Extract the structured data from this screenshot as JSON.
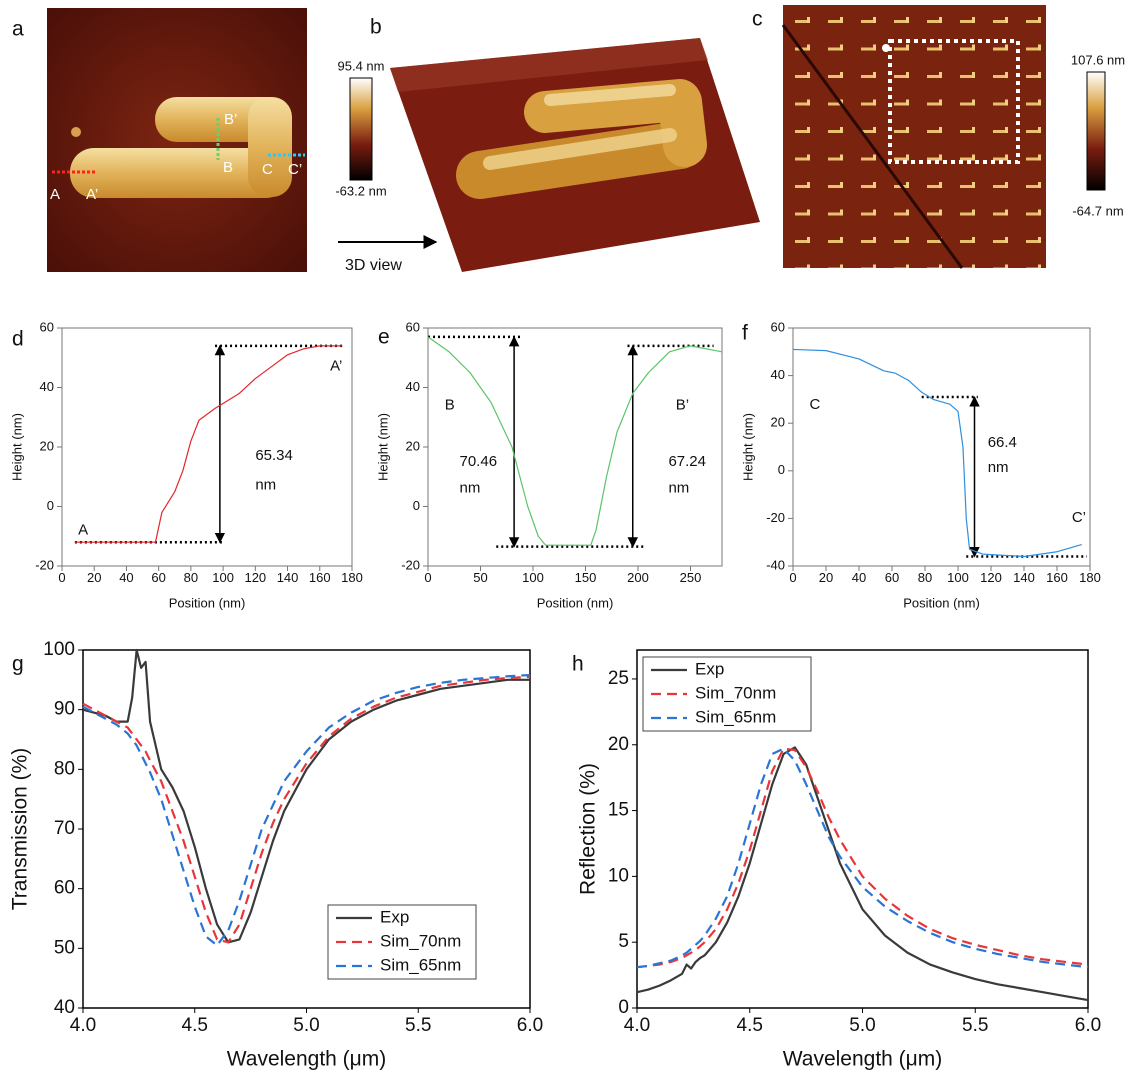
{
  "panels": [
    "a",
    "b",
    "c",
    "d",
    "e",
    "f",
    "g",
    "h"
  ],
  "images": {
    "a": {
      "annotations": [
        "A",
        "A’",
        "B",
        "B’",
        "C",
        "C’"
      ]
    },
    "b": {
      "colorbar": [
        "95.4 nm",
        "-63.2 nm"
      ],
      "caption": "3D view"
    },
    "c": {
      "colorbar": [
        "107.6 nm",
        "-64.7 nm"
      ]
    }
  },
  "chart_data": [
    {
      "type": "line",
      "x_label": "Position (nm)",
      "y_label": "Height (nm)",
      "xlim": [
        0,
        180
      ],
      "xticks": [
        0,
        20,
        40,
        60,
        80,
        100,
        120,
        140,
        160,
        180
      ],
      "ylim": [
        -20,
        60
      ],
      "yticks": [
        -20,
        0,
        20,
        40,
        60
      ],
      "x": [
        8,
        40,
        58,
        62,
        70,
        75,
        80,
        85,
        95,
        110,
        120,
        130,
        140,
        150,
        160,
        174
      ],
      "series": [
        {
          "color": "#e3262b",
          "values": [
            -12,
            -12,
            -12,
            -2,
            5,
            12,
            22,
            29,
            33,
            38,
            43,
            47,
            51,
            53,
            54,
            54
          ]
        }
      ],
      "ref_lines": [
        {
          "y": 54,
          "x": [
            95,
            175
          ]
        },
        {
          "y": -12,
          "x": [
            8,
            100
          ]
        }
      ],
      "arrows": [
        {
          "x": 98,
          "y": [
            -12,
            54
          ]
        }
      ],
      "annotations": [
        "A",
        "A’",
        "65.34",
        "nm"
      ]
    },
    {
      "type": "line",
      "x_label": "Position (nm)",
      "y_label": "Height (nm)",
      "xlim": [
        0,
        280
      ],
      "xticks": [
        0,
        50,
        100,
        150,
        200,
        250
      ],
      "ylim": [
        -20,
        60
      ],
      "yticks": [
        -20,
        0,
        20,
        40,
        60
      ],
      "x": [
        0,
        20,
        40,
        60,
        80,
        95,
        105,
        112,
        155,
        160,
        170,
        180,
        195,
        210,
        230,
        250,
        280
      ],
      "series": [
        {
          "color": "#5cc36a",
          "values": [
            57,
            52,
            45,
            35,
            20,
            0,
            -10,
            -13,
            -13,
            -8,
            10,
            25,
            38,
            45,
            52,
            54,
            52
          ]
        }
      ],
      "ref_lines": [
        {
          "y": 57,
          "x": [
            0,
            90
          ]
        },
        {
          "y": 54,
          "x": [
            190,
            272
          ]
        },
        {
          "y": -13.5,
          "x": [
            65,
            205
          ]
        }
      ],
      "arrows": [
        {
          "x": 82,
          "y": [
            -13.5,
            57
          ]
        },
        {
          "x": 195,
          "y": [
            -13.5,
            54
          ]
        }
      ],
      "annotations": [
        "B",
        "B’",
        "70.46",
        "nm",
        "67.24",
        "nm"
      ]
    },
    {
      "type": "line",
      "x_label": "Position (nm)",
      "y_label": "Height (nm)",
      "xlim": [
        0,
        180
      ],
      "xticks": [
        0,
        20,
        40,
        60,
        80,
        100,
        120,
        140,
        160,
        180
      ],
      "ylim": [
        -40,
        60
      ],
      "yticks": [
        -40,
        -20,
        0,
        20,
        40,
        60
      ],
      "x": [
        0,
        20,
        40,
        55,
        62,
        70,
        78,
        85,
        95,
        100,
        103,
        105,
        107,
        115,
        140,
        160,
        175
      ],
      "series": [
        {
          "color": "#2f8fdf",
          "values": [
            51,
            50.5,
            47,
            42,
            41,
            38,
            33,
            30,
            28,
            25,
            10,
            -20,
            -33,
            -35,
            -36,
            -34,
            -31
          ]
        }
      ],
      "ref_lines": [
        {
          "y": 31,
          "x": [
            78,
            112
          ]
        },
        {
          "y": -36,
          "x": [
            105,
            178
          ]
        }
      ],
      "arrows": [
        {
          "x": 110,
          "y": [
            -36,
            31
          ]
        }
      ],
      "annotations": [
        "C",
        "C’",
        "66.4",
        "nm"
      ]
    },
    {
      "type": "line",
      "x_label": "Wavelength (μm)",
      "y_label": "Transmission (%)",
      "xlim": [
        4,
        6
      ],
      "xticks": [
        {
          "value": 4,
          "label": "4.0"
        },
        4.5,
        {
          "value": 5,
          "label": "5.0"
        },
        5.5,
        {
          "value": 6,
          "label": "6.0"
        }
      ],
      "ylim": [
        40,
        100
      ],
      "yticks": [
        40,
        50,
        60,
        70,
        80,
        90,
        100
      ],
      "legend": "lower right",
      "x": [
        4.0,
        4.05,
        4.1,
        4.15,
        4.2,
        4.22,
        4.24,
        4.26,
        4.28,
        4.3,
        4.35,
        4.4,
        4.45,
        4.5,
        4.55,
        4.6,
        4.65,
        4.7,
        4.75,
        4.8,
        4.85,
        4.9,
        5.0,
        5.1,
        5.2,
        5.3,
        5.4,
        5.5,
        5.6,
        5.7,
        5.8,
        5.9,
        6.0
      ],
      "series": [
        {
          "name": "Exp",
          "color": "#3a3a3a",
          "dash": false,
          "values": [
            90,
            89.5,
            89,
            88,
            88,
            92,
            100,
            97,
            98,
            88,
            80,
            77,
            73,
            67,
            60,
            54,
            51,
            51.5,
            56,
            62,
            68,
            73,
            80,
            85,
            88,
            90,
            91.5,
            92.5,
            93.5,
            94,
            94.5,
            95,
            95
          ]
        },
        {
          "name": "Sim_70nm",
          "color": "#e8353a",
          "dash": true,
          "values": [
            91,
            90,
            89,
            88,
            87,
            86,
            85,
            84,
            83,
            81.5,
            78,
            73,
            68,
            62,
            56,
            51.5,
            51,
            54,
            60,
            66,
            71,
            75,
            81,
            85.5,
            88.5,
            90.5,
            92,
            93,
            94,
            94.5,
            95,
            95.3,
            95.5
          ]
        },
        {
          "name": "Sim_65nm",
          "color": "#2a74d6",
          "dash": true,
          "values": [
            90.5,
            89.5,
            88.5,
            87.5,
            86,
            85,
            84,
            82.5,
            81,
            79.5,
            75,
            69,
            63,
            57,
            52,
            50.5,
            53,
            58,
            64,
            70,
            74,
            78,
            83,
            87,
            89.5,
            91.5,
            92.8,
            93.8,
            94.5,
            95,
            95.3,
            95.6,
            95.8
          ]
        }
      ]
    },
    {
      "type": "line",
      "x_label": "Wavelength (μm)",
      "y_label": "Reflection (%)",
      "xlim": [
        4,
        6
      ],
      "xticks": [
        {
          "value": 4,
          "label": "4.0"
        },
        4.5,
        {
          "value": 5,
          "label": "5.0"
        },
        5.5,
        {
          "value": 6,
          "label": "6.0"
        }
      ],
      "ylim": [
        0,
        27.2
      ],
      "yticks": [
        0,
        5,
        10,
        15,
        20,
        25
      ],
      "legend": "upper left",
      "x": [
        4.0,
        4.05,
        4.1,
        4.15,
        4.2,
        4.22,
        4.24,
        4.26,
        4.28,
        4.3,
        4.35,
        4.4,
        4.45,
        4.5,
        4.55,
        4.6,
        4.65,
        4.7,
        4.75,
        4.8,
        4.85,
        4.9,
        5.0,
        5.1,
        5.2,
        5.3,
        5.4,
        5.5,
        5.6,
        5.7,
        5.8,
        5.9,
        6.0
      ],
      "series": [
        {
          "name": "Exp",
          "color": "#3a3a3a",
          "dash": false,
          "values": [
            1.2,
            1.4,
            1.7,
            2.1,
            2.6,
            3.3,
            3.0,
            3.5,
            3.8,
            4.0,
            5,
            6.5,
            8.5,
            11,
            14,
            17,
            19.3,
            19.8,
            18.5,
            16,
            13.5,
            11,
            7.5,
            5.5,
            4.2,
            3.3,
            2.7,
            2.2,
            1.8,
            1.5,
            1.2,
            0.9,
            0.6
          ]
        },
        {
          "name": "Sim_70nm",
          "color": "#e8353a",
          "dash": true,
          "values": [
            3.1,
            3.2,
            3.3,
            3.5,
            3.8,
            4.0,
            4.2,
            4.4,
            4.7,
            5.0,
            6,
            7.5,
            9.5,
            12,
            15,
            18,
            19.7,
            19.6,
            18.3,
            16.5,
            14.5,
            12.8,
            10,
            8.3,
            7,
            6,
            5.3,
            4.8,
            4.4,
            4.0,
            3.7,
            3.5,
            3.3
          ]
        },
        {
          "name": "Sim_65nm",
          "color": "#2a74d6",
          "dash": true,
          "values": [
            3.1,
            3.2,
            3.4,
            3.6,
            4.0,
            4.2,
            4.5,
            4.8,
            5.1,
            5.5,
            6.8,
            8.5,
            11,
            14,
            17,
            19.3,
            19.7,
            18.8,
            17,
            15,
            13,
            11.5,
            9.2,
            7.7,
            6.6,
            5.7,
            5.0,
            4.5,
            4.1,
            3.8,
            3.5,
            3.3,
            3.1
          ]
        }
      ]
    }
  ]
}
